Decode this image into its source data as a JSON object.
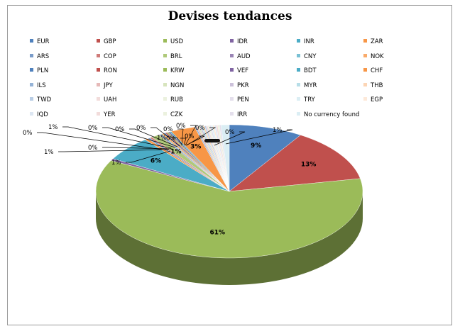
{
  "chart_data": {
    "type": "pie",
    "title": "Devises tendances",
    "legend_position": "top",
    "slices": [
      {
        "label": "EUR",
        "value": 9,
        "display": "9%",
        "color": "#4f81bd"
      },
      {
        "label": "GBP",
        "value": 13,
        "display": "13%",
        "color": "#c0504d"
      },
      {
        "label": "USD",
        "value": 61,
        "display": "61%",
        "color": "#9bbb59"
      },
      {
        "label": "IDR",
        "value": 0.5,
        "display": "",
        "color": "#8064a2"
      },
      {
        "label": "INR",
        "value": 6,
        "display": "6%",
        "color": "#4bacc6"
      },
      {
        "label": "ZAR",
        "value": 0.4,
        "display": "",
        "color": "#f79646"
      },
      {
        "label": "ARS",
        "value": 0.3,
        "display": "",
        "color": "#7a9cc9"
      },
      {
        "label": "COP",
        "value": 0.3,
        "display": "",
        "color": "#cf7b79"
      },
      {
        "label": "BRL",
        "value": 1,
        "display": "1%",
        "color": "#afc97a"
      },
      {
        "label": "AUD",
        "value": 0.2,
        "display": "",
        "color": "#9a85b5"
      },
      {
        "label": "CNY",
        "value": 0.2,
        "display": "",
        "color": "#79c0d4"
      },
      {
        "label": "NOK",
        "value": 0.3,
        "display": "",
        "color": "#f9ab6b"
      },
      {
        "label": "PLN",
        "value": 0.2,
        "display": "",
        "color": "#4f81bd"
      },
      {
        "label": "RON",
        "value": 0.2,
        "display": "",
        "color": "#c0504d"
      },
      {
        "label": "KRW",
        "value": 0.2,
        "display": "",
        "color": "#9bbb59"
      },
      {
        "label": "VEF",
        "value": 0.2,
        "display": "",
        "color": "#8064a2"
      },
      {
        "label": "BDT",
        "value": 0.2,
        "display": "",
        "color": "#4bacc6"
      },
      {
        "label": "CHF",
        "value": 3,
        "display": "3%",
        "color": "#f79646"
      },
      {
        "label": "ILS",
        "value": 0.2,
        "display": "",
        "color": "#95b3d7"
      },
      {
        "label": "JPY",
        "value": 0.2,
        "display": "",
        "color": "#e6b9b8"
      },
      {
        "label": "NGN",
        "value": 0.2,
        "display": "",
        "color": "#d7e4bd"
      },
      {
        "label": "PKR",
        "value": 0.2,
        "display": "",
        "color": "#ccc1da"
      },
      {
        "label": "MYR",
        "value": 0.2,
        "display": "",
        "color": "#b7dee8"
      },
      {
        "label": "THB",
        "value": 0.2,
        "display": "",
        "color": "#fcd5b5"
      },
      {
        "label": "TWD",
        "value": 0.2,
        "display": "",
        "color": "#b9cde5"
      },
      {
        "label": "UAH",
        "value": 0.2,
        "display": "",
        "color": "#f2dcdb"
      },
      {
        "label": "RUB",
        "value": 0.2,
        "display": "",
        "color": "#ebf1de"
      },
      {
        "label": "PEN",
        "value": 0.2,
        "display": "",
        "color": "#e4dfec"
      },
      {
        "label": "TRY",
        "value": 0.2,
        "display": "",
        "color": "#dbeef4"
      },
      {
        "label": "EGP",
        "value": 0.2,
        "display": "",
        "color": "#fde9d9"
      },
      {
        "label": "IQD",
        "value": 0.2,
        "display": "",
        "color": "#dce6f2"
      },
      {
        "label": "YER",
        "value": 0.2,
        "display": "",
        "color": "#f2dcdb"
      },
      {
        "label": "CZK",
        "value": 0.2,
        "display": "",
        "color": "#ebf1de"
      },
      {
        "label": "IRR",
        "value": 0.2,
        "display": "",
        "color": "#e4dfec"
      },
      {
        "label": "No currency found",
        "value": 1,
        "display": "",
        "color": "#dbeef4"
      }
    ],
    "outside_labels": [
      "1%",
      "0%",
      "1%",
      "0%",
      "1%",
      "0%",
      "0%",
      "0%",
      "0%",
      "1%",
      "0%",
      "0%",
      "0%",
      "0%",
      "0%",
      "1%"
    ]
  }
}
